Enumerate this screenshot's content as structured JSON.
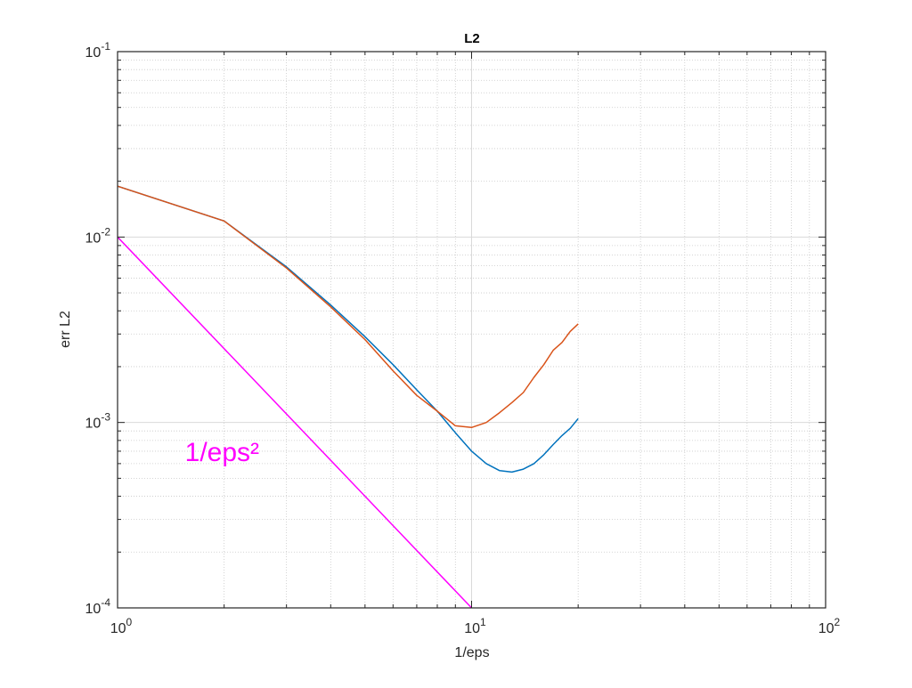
{
  "chart_data": {
    "type": "line",
    "title": "L2",
    "xlabel": "1/eps",
    "ylabel": "err L2",
    "xscale": "log",
    "yscale": "log",
    "xlim": [
      1,
      100
    ],
    "ylim": [
      0.0001,
      0.1
    ],
    "grid": true,
    "minor_grid": true,
    "x_ticks": [
      {
        "value": 1,
        "base": "10",
        "exp": "0"
      },
      {
        "value": 10,
        "base": "10",
        "exp": "1"
      },
      {
        "value": 100,
        "base": "10",
        "exp": "2"
      }
    ],
    "y_ticks": [
      {
        "value": 0.0001,
        "base": "10",
        "exp": "-4"
      },
      {
        "value": 0.001,
        "base": "10",
        "exp": "-3"
      },
      {
        "value": 0.01,
        "base": "10",
        "exp": "-2"
      },
      {
        "value": 0.1,
        "base": "10",
        "exp": "-1"
      }
    ],
    "series": [
      {
        "color": "#0072bd",
        "x": [
          1,
          2,
          3,
          4,
          5,
          6,
          7,
          8,
          9,
          10,
          11,
          12,
          13,
          14,
          15,
          16,
          17,
          18,
          19,
          20
        ],
        "y": [
          0.0188,
          0.0122,
          0.0069,
          0.0043,
          0.0029,
          0.00205,
          0.0015,
          0.00115,
          0.00088,
          0.0007,
          0.0006,
          0.00055,
          0.00054,
          0.00056,
          0.0006,
          0.00067,
          0.00076,
          0.00085,
          0.00093,
          0.00105
        ]
      },
      {
        "color": "#d95319",
        "x": [
          1,
          2,
          3,
          4,
          5,
          6,
          7,
          8,
          9,
          10,
          11,
          12,
          13,
          14,
          15,
          16,
          17,
          18,
          19,
          20
        ],
        "y": [
          0.0188,
          0.0122,
          0.0068,
          0.0042,
          0.0028,
          0.0019,
          0.0014,
          0.00115,
          0.00096,
          0.00094,
          0.001,
          0.00113,
          0.00128,
          0.00145,
          0.00175,
          0.00205,
          0.00245,
          0.0027,
          0.0031,
          0.0034
        ]
      },
      {
        "color": "#ff00ff",
        "x": [
          1,
          10
        ],
        "y": [
          0.01,
          0.0001
        ]
      }
    ],
    "annotations": [
      {
        "text": "1/eps²",
        "color": "#ff00ff",
        "x": 1.55,
        "y": 0.00062
      }
    ]
  }
}
